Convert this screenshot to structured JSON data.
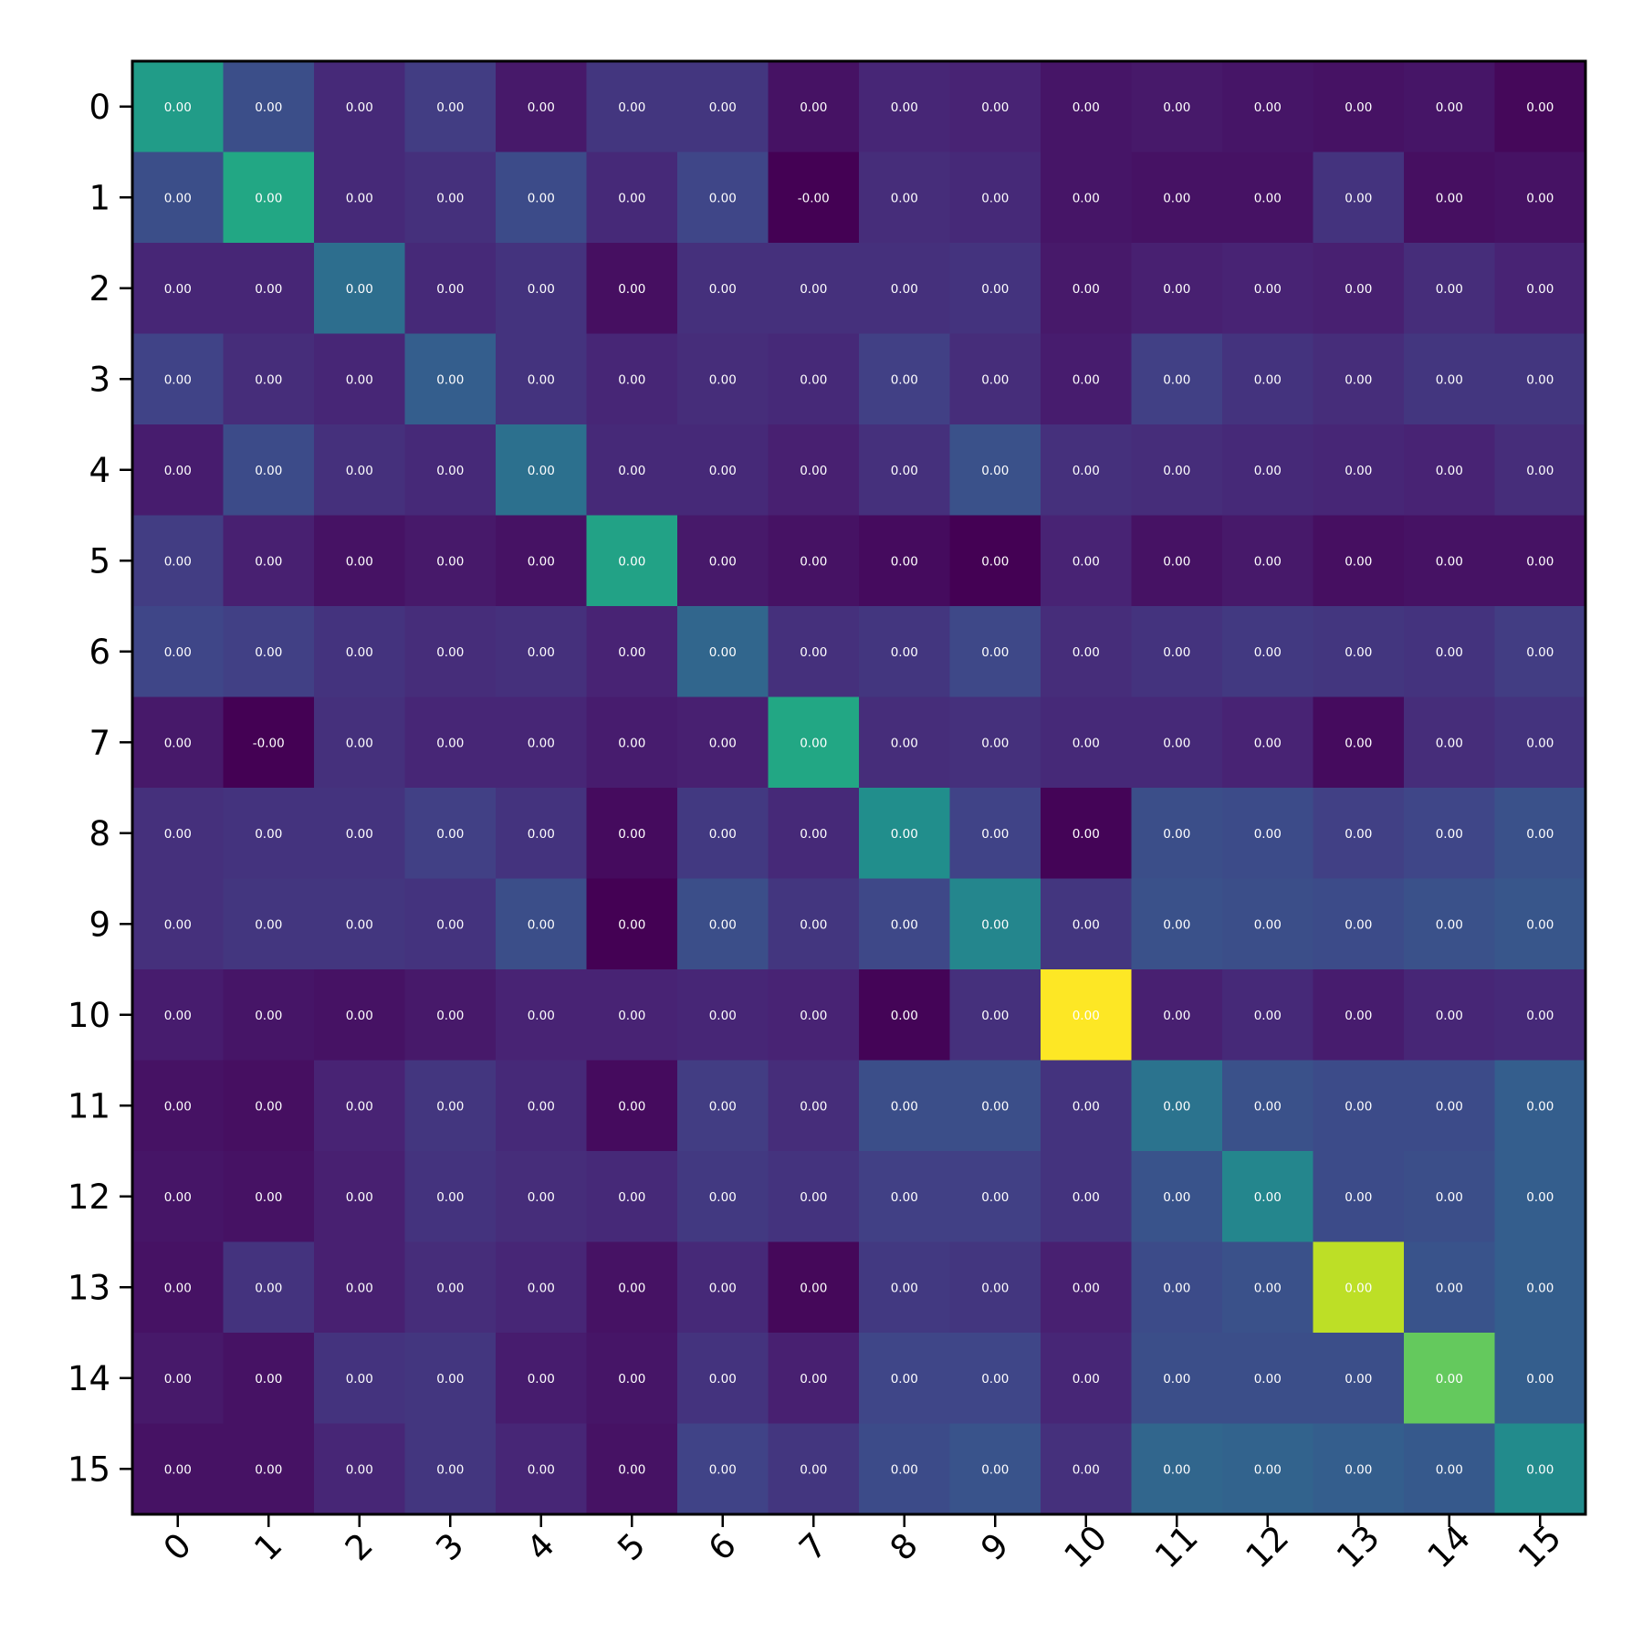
{
  "chart_data": {
    "type": "heatmap",
    "title": "",
    "xlabel": "",
    "ylabel": "",
    "x_tick_labels": [
      "0",
      "1",
      "2",
      "3",
      "4",
      "5",
      "6",
      "7",
      "8",
      "9",
      "10",
      "11",
      "12",
      "13",
      "14",
      "15"
    ],
    "y_tick_labels": [
      "0",
      "1",
      "2",
      "3",
      "4",
      "5",
      "6",
      "7",
      "8",
      "9",
      "10",
      "11",
      "12",
      "13",
      "14",
      "15"
    ],
    "colormap": "viridis",
    "colorbar": false,
    "grid": false,
    "x_tick_rotation_deg": 45,
    "color_intensity": [
      [
        0.55,
        0.24,
        0.12,
        0.18,
        0.07,
        0.16,
        0.16,
        0.05,
        0.11,
        0.1,
        0.06,
        0.07,
        0.06,
        0.05,
        0.06,
        0.02
      ],
      [
        0.24,
        0.6,
        0.12,
        0.14,
        0.23,
        0.12,
        0.21,
        0.0,
        0.13,
        0.12,
        0.06,
        0.05,
        0.05,
        0.15,
        0.04,
        0.05
      ],
      [
        0.11,
        0.11,
        0.36,
        0.12,
        0.15,
        0.04,
        0.14,
        0.14,
        0.14,
        0.15,
        0.07,
        0.09,
        0.1,
        0.09,
        0.13,
        0.1
      ],
      [
        0.2,
        0.13,
        0.11,
        0.3,
        0.15,
        0.11,
        0.13,
        0.12,
        0.19,
        0.13,
        0.08,
        0.19,
        0.15,
        0.13,
        0.16,
        0.16
      ],
      [
        0.08,
        0.23,
        0.14,
        0.12,
        0.37,
        0.12,
        0.12,
        0.09,
        0.14,
        0.25,
        0.14,
        0.13,
        0.12,
        0.11,
        0.1,
        0.13
      ],
      [
        0.18,
        0.09,
        0.05,
        0.07,
        0.05,
        0.58,
        0.07,
        0.05,
        0.03,
        0.0,
        0.1,
        0.05,
        0.07,
        0.04,
        0.05,
        0.05
      ],
      [
        0.21,
        0.19,
        0.15,
        0.13,
        0.14,
        0.1,
        0.33,
        0.14,
        0.16,
        0.22,
        0.13,
        0.15,
        0.17,
        0.16,
        0.15,
        0.18
      ],
      [
        0.07,
        0.0,
        0.14,
        0.11,
        0.11,
        0.08,
        0.09,
        0.6,
        0.13,
        0.14,
        0.12,
        0.12,
        0.1,
        0.03,
        0.13,
        0.15
      ],
      [
        0.14,
        0.15,
        0.15,
        0.19,
        0.15,
        0.03,
        0.17,
        0.12,
        0.49,
        0.2,
        0.01,
        0.24,
        0.23,
        0.19,
        0.21,
        0.25
      ],
      [
        0.14,
        0.16,
        0.16,
        0.15,
        0.24,
        0.0,
        0.24,
        0.16,
        0.22,
        0.46,
        0.16,
        0.25,
        0.24,
        0.23,
        0.25,
        0.27
      ],
      [
        0.08,
        0.06,
        0.05,
        0.07,
        0.1,
        0.1,
        0.11,
        0.1,
        0.01,
        0.14,
        1.0,
        0.09,
        0.12,
        0.08,
        0.11,
        0.12
      ],
      [
        0.05,
        0.04,
        0.1,
        0.16,
        0.12,
        0.03,
        0.18,
        0.13,
        0.24,
        0.24,
        0.15,
        0.38,
        0.25,
        0.23,
        0.23,
        0.3
      ],
      [
        0.06,
        0.05,
        0.09,
        0.15,
        0.13,
        0.12,
        0.17,
        0.15,
        0.19,
        0.19,
        0.15,
        0.26,
        0.46,
        0.23,
        0.24,
        0.3
      ],
      [
        0.05,
        0.15,
        0.09,
        0.13,
        0.11,
        0.05,
        0.12,
        0.02,
        0.17,
        0.16,
        0.09,
        0.23,
        0.25,
        0.9,
        0.26,
        0.3
      ],
      [
        0.07,
        0.05,
        0.15,
        0.16,
        0.08,
        0.06,
        0.15,
        0.09,
        0.21,
        0.21,
        0.11,
        0.24,
        0.24,
        0.24,
        0.76,
        0.3
      ],
      [
        0.05,
        0.05,
        0.11,
        0.16,
        0.11,
        0.05,
        0.2,
        0.16,
        0.23,
        0.26,
        0.14,
        0.33,
        0.32,
        0.3,
        0.28,
        0.48
      ]
    ],
    "cell_labels": [
      [
        "0.00",
        "0.00",
        "0.00",
        "0.00",
        "0.00",
        "0.00",
        "0.00",
        "0.00",
        "0.00",
        "0.00",
        "0.00",
        "0.00",
        "0.00",
        "0.00",
        "0.00",
        "0.00"
      ],
      [
        "0.00",
        "0.00",
        "0.00",
        "0.00",
        "0.00",
        "0.00",
        "0.00",
        "-0.00",
        "0.00",
        "0.00",
        "0.00",
        "0.00",
        "0.00",
        "0.00",
        "0.00",
        "0.00"
      ],
      [
        "0.00",
        "0.00",
        "0.00",
        "0.00",
        "0.00",
        "0.00",
        "0.00",
        "0.00",
        "0.00",
        "0.00",
        "0.00",
        "0.00",
        "0.00",
        "0.00",
        "0.00",
        "0.00"
      ],
      [
        "0.00",
        "0.00",
        "0.00",
        "0.00",
        "0.00",
        "0.00",
        "0.00",
        "0.00",
        "0.00",
        "0.00",
        "0.00",
        "0.00",
        "0.00",
        "0.00",
        "0.00",
        "0.00"
      ],
      [
        "0.00",
        "0.00",
        "0.00",
        "0.00",
        "0.00",
        "0.00",
        "0.00",
        "0.00",
        "0.00",
        "0.00",
        "0.00",
        "0.00",
        "0.00",
        "0.00",
        "0.00",
        "0.00"
      ],
      [
        "0.00",
        "0.00",
        "0.00",
        "0.00",
        "0.00",
        "0.00",
        "0.00",
        "0.00",
        "0.00",
        "0.00",
        "0.00",
        "0.00",
        "0.00",
        "0.00",
        "0.00",
        "0.00"
      ],
      [
        "0.00",
        "0.00",
        "0.00",
        "0.00",
        "0.00",
        "0.00",
        "0.00",
        "0.00",
        "0.00",
        "0.00",
        "0.00",
        "0.00",
        "0.00",
        "0.00",
        "0.00",
        "0.00"
      ],
      [
        "0.00",
        "-0.00",
        "0.00",
        "0.00",
        "0.00",
        "0.00",
        "0.00",
        "0.00",
        "0.00",
        "0.00",
        "0.00",
        "0.00",
        "0.00",
        "0.00",
        "0.00",
        "0.00"
      ],
      [
        "0.00",
        "0.00",
        "0.00",
        "0.00",
        "0.00",
        "0.00",
        "0.00",
        "0.00",
        "0.00",
        "0.00",
        "0.00",
        "0.00",
        "0.00",
        "0.00",
        "0.00",
        "0.00"
      ],
      [
        "0.00",
        "0.00",
        "0.00",
        "0.00",
        "0.00",
        "0.00",
        "0.00",
        "0.00",
        "0.00",
        "0.00",
        "0.00",
        "0.00",
        "0.00",
        "0.00",
        "0.00",
        "0.00"
      ],
      [
        "0.00",
        "0.00",
        "0.00",
        "0.00",
        "0.00",
        "0.00",
        "0.00",
        "0.00",
        "0.00",
        "0.00",
        "0.00",
        "0.00",
        "0.00",
        "0.00",
        "0.00",
        "0.00"
      ],
      [
        "0.00",
        "0.00",
        "0.00",
        "0.00",
        "0.00",
        "0.00",
        "0.00",
        "0.00",
        "0.00",
        "0.00",
        "0.00",
        "0.00",
        "0.00",
        "0.00",
        "0.00",
        "0.00"
      ],
      [
        "0.00",
        "0.00",
        "0.00",
        "0.00",
        "0.00",
        "0.00",
        "0.00",
        "0.00",
        "0.00",
        "0.00",
        "0.00",
        "0.00",
        "0.00",
        "0.00",
        "0.00",
        "0.00"
      ],
      [
        "0.00",
        "0.00",
        "0.00",
        "0.00",
        "0.00",
        "0.00",
        "0.00",
        "0.00",
        "0.00",
        "0.00",
        "0.00",
        "0.00",
        "0.00",
        "0.00",
        "0.00",
        "0.00"
      ],
      [
        "0.00",
        "0.00",
        "0.00",
        "0.00",
        "0.00",
        "0.00",
        "0.00",
        "0.00",
        "0.00",
        "0.00",
        "0.00",
        "0.00",
        "0.00",
        "0.00",
        "0.00",
        "0.00"
      ],
      [
        "0.00",
        "0.00",
        "0.00",
        "0.00",
        "0.00",
        "0.00",
        "0.00",
        "0.00",
        "0.00",
        "0.00",
        "0.00",
        "0.00",
        "0.00",
        "0.00",
        "0.00",
        "0.00"
      ]
    ]
  }
}
